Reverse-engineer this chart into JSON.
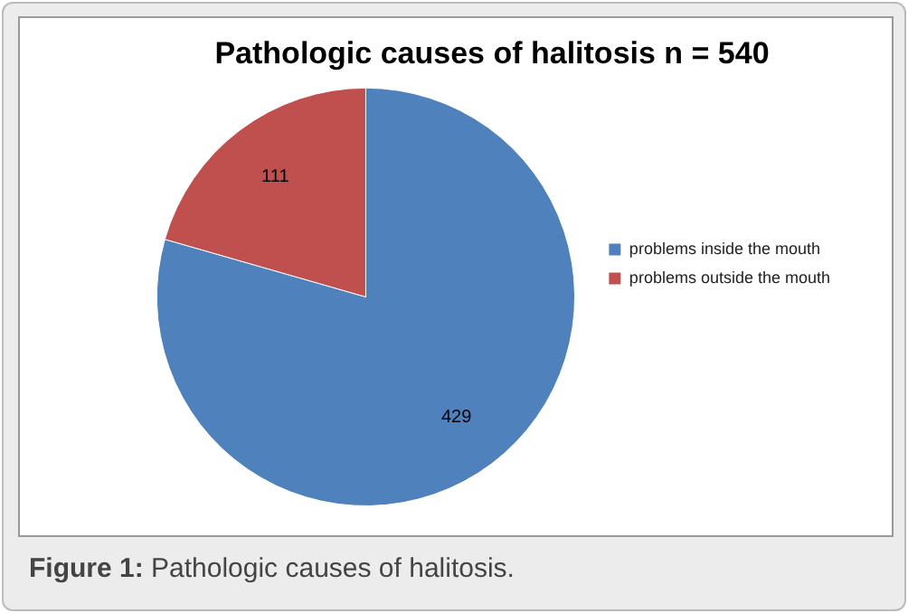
{
  "chart_data": {
    "type": "pie",
    "title": "Pathologic causes of halitosis n = 540",
    "categories": [
      "problems inside the mouth",
      "problems outside the mouth"
    ],
    "values": [
      429,
      111
    ],
    "colors": [
      "#4f81bd",
      "#c0504d"
    ],
    "data_labels": true,
    "legend": "right",
    "annotations": [
      "Figure 1: Pathologic causes of halitosis."
    ]
  }
}
